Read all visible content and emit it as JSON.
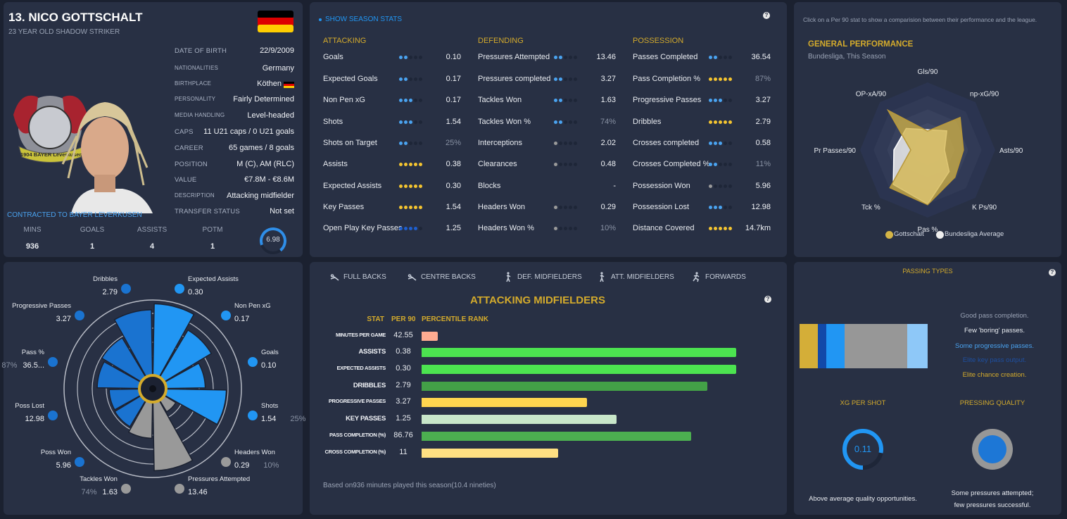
{
  "player": {
    "name": "13. NICO GOTTSCHALT",
    "subtitle": "23 YEAR OLD  SHADOW STRIKER",
    "nation_flag_colors": [
      "#000000",
      "#dd0000",
      "#ffce00"
    ],
    "crest_text": "1904 BAYER Leverkusen",
    "contracted": "CONTRACTED TO BAYER LEVERKUSEN",
    "info": [
      {
        "label": "DATE OF BIRTH",
        "value": "22/9/2009"
      },
      {
        "label": "NATIONALITIES",
        "value": "Germany"
      },
      {
        "label": "BIRTHPLACE",
        "value": "Köthen"
      },
      {
        "label": "PERSONALITY",
        "value": "Fairly Determined"
      },
      {
        "label": "MEDIA HANDLING",
        "value": "Level-headed"
      },
      {
        "label": "CAPS",
        "value": "11 U21 caps / 0 U21 goals"
      },
      {
        "label": "CAREER",
        "value": "65  games /    8  goals"
      },
      {
        "label": "POSITION",
        "value": "M (C), AM (RLC)"
      },
      {
        "label": "VALUE",
        "value": "€7.8M - €8.6M"
      },
      {
        "label": "DESCRIPTION",
        "value": "Attacking midfielder"
      },
      {
        "label": "TRANSFER STATUS",
        "value": "Not set"
      }
    ],
    "summary": [
      {
        "label": "MINS",
        "value": "936"
      },
      {
        "label": "GOALS",
        "value": "1"
      },
      {
        "label": "ASSISTS",
        "value": "4"
      },
      {
        "label": "POTM",
        "value": "1"
      }
    ],
    "rating": {
      "value": "6.98",
      "fill_fraction": 0.7
    }
  },
  "season_stats": {
    "toggle_label": "SHOW SEASON STATS",
    "dot_colors": {
      "blue": "#4aa3f0",
      "yellow": "#f4c430",
      "navy": "#1f5fcf",
      "grey": "#9a9a9a"
    },
    "groups": [
      {
        "title": "ATTACKING",
        "stats": [
          {
            "label": "Goals",
            "dots": 2,
            "color": "blue",
            "value": "0.10"
          },
          {
            "label": "Expected Goals",
            "dots": 2,
            "color": "blue",
            "value": "0.17"
          },
          {
            "label": "Non Pen xG",
            "dots": 3,
            "color": "blue",
            "value": "0.17"
          },
          {
            "label": "Shots",
            "dots": 3,
            "color": "blue",
            "value": "1.54"
          },
          {
            "label": "Shots on Target",
            "dots": 2,
            "color": "blue",
            "value": "25%",
            "dim": true
          },
          {
            "label": "Assists",
            "dots": 5,
            "color": "yellow",
            "value": "0.38"
          },
          {
            "label": "Expected Assists",
            "dots": 5,
            "color": "yellow",
            "value": "0.30"
          },
          {
            "label": "Key Passes",
            "dots": 5,
            "color": "yellow",
            "value": "1.54"
          },
          {
            "label": "Open Play Key Passes",
            "dots": 4,
            "color": "navy",
            "value": "1.25"
          }
        ]
      },
      {
        "title": "DEFENDING",
        "stats": [
          {
            "label": "Pressures Attempted",
            "dots": 2,
            "color": "blue",
            "value": "13.46"
          },
          {
            "label": "Pressures completed",
            "dots": 2,
            "color": "blue",
            "value": "3.27"
          },
          {
            "label": "Tackles Won",
            "dots": 2,
            "color": "blue",
            "value": "1.63"
          },
          {
            "label": "Tackles Won %",
            "dots": 2,
            "color": "blue",
            "value": "74%",
            "dim": true
          },
          {
            "label": "Interceptions",
            "dots": 1,
            "color": "grey",
            "value": "2.02"
          },
          {
            "label": "Clearances",
            "dots": 1,
            "color": "grey",
            "value": "0.48"
          },
          {
            "label": "Blocks",
            "dots": null,
            "color": "grey",
            "value": "-"
          },
          {
            "label": "Headers Won",
            "dots": 1,
            "color": "grey",
            "value": "0.29"
          },
          {
            "label": "Headers Won %",
            "dots": 1,
            "color": "grey",
            "value": "10%",
            "dim": true
          }
        ]
      },
      {
        "title": "POSSESSION",
        "stats": [
          {
            "label": "Passes Completed",
            "dots": 2,
            "color": "blue",
            "value": "36.54"
          },
          {
            "label": "Pass Completion %",
            "dots": 5,
            "color": "yellow",
            "value": "87%",
            "dim": true
          },
          {
            "label": "Progressive Passes",
            "dots": 3,
            "color": "blue",
            "value": "3.27"
          },
          {
            "label": "Dribbles",
            "dots": 5,
            "color": "yellow",
            "value": "2.79"
          },
          {
            "label": "Crosses completed",
            "dots": 3,
            "color": "blue",
            "value": "0.58"
          },
          {
            "label": "Crosses Completed %",
            "dots": 2,
            "color": "blue",
            "value": "11%",
            "dim": true
          },
          {
            "label": "Possession Won",
            "dots": 1,
            "color": "grey",
            "value": "5.96"
          },
          {
            "label": "Possession Lost",
            "dots": 3,
            "color": "blue",
            "value": "12.98"
          },
          {
            "label": "Distance Covered",
            "dots": 5,
            "color": "yellow",
            "value": "14.7km"
          }
        ]
      }
    ]
  },
  "general_performance": {
    "hint": "Click on a Per 90 stat to show a comparision between their performance and the league.",
    "title": "GENERAL PERFORMANCE",
    "subtitle": "Bundesliga, This Season"
  },
  "role_tabs": [
    {
      "label": "FULL BACKS",
      "icon": "slide-tackle-icon"
    },
    {
      "label": "CENTRE BACKS",
      "icon": "slide-tackle-icon"
    },
    {
      "label": "DEF. MIDFIELDERS",
      "icon": "player-walking-icon"
    },
    {
      "label": "ATT. MIDFIELDERS",
      "icon": "player-walking-icon"
    },
    {
      "label": "FORWARDS",
      "icon": "player-running-icon"
    }
  ],
  "percentiles": {
    "title": "ATTACKING MIDFIELDERS",
    "headers": {
      "stat": "STAT",
      "per90": "PER 90",
      "rank": "PERCENTILE RANK"
    },
    "footer": "Based on936 minutes played this season(10.4 nineties)"
  },
  "passing_types": {
    "title": "PASSING TYPES",
    "segments": [
      {
        "share": 14.3,
        "color": "#d4ae38"
      },
      {
        "share": 6.6,
        "color": "#1249a8"
      },
      {
        "share": 14.3,
        "color": "#2196f3"
      },
      {
        "share": 48.9,
        "color": "#979797"
      },
      {
        "share": 15.9,
        "color": "#8ec8f8"
      }
    ],
    "notes": [
      {
        "text": "Good pass completion.",
        "color": "#9aa3b5"
      },
      {
        "text": "Few 'boring' passes.",
        "color": "#e8ebf0"
      },
      {
        "text": "Some progressive passes.",
        "color": "#4aa3f0"
      },
      {
        "text": "Elite key pass output.",
        "color": "#1e4fa0"
      },
      {
        "text": "Elite chance creation.",
        "color": "#d4ab2c"
      }
    ]
  },
  "xg_per_shot": {
    "title": "XG PER SHOT",
    "value": "0.11",
    "fill_fraction": 0.78,
    "note": "Above average quality opportunities."
  },
  "pressing_quality": {
    "title": "PRESSING QUALITY",
    "note_line1": "Some pressures attempted;",
    "note_line2": "few pressures successful."
  },
  "chart_data": [
    {
      "type": "radar",
      "axes": [
        "Gls/90",
        "np-xG/90",
        "Asts/90",
        "K Ps/90",
        "Pas %",
        "Tck %",
        "Pr Passes/90",
        "OP-xA/90"
      ],
      "range": [
        0,
        1
      ],
      "series": [
        {
          "name": "Gottschalt",
          "color": "#d4b446",
          "values": [
            0.28,
            0.68,
            0.53,
            0.57,
            0.81,
            0.79,
            0.25,
            0.83
          ]
        },
        {
          "name": "Bundesliga Average",
          "color": "#eeeeee",
          "values": [
            0.3,
            0.4,
            0.25,
            0.45,
            0.8,
            0.72,
            0.5,
            0.45
          ]
        }
      ]
    },
    {
      "type": "pizza",
      "group_colors": {
        "attacking": "#2196f3",
        "possession": "#1a73d0",
        "defending": "#999999"
      },
      "slices": [
        {
          "label": "Expected Assists",
          "value": "0.30",
          "percentile": 95,
          "group": "attacking"
        },
        {
          "label": "Non Pen xG",
          "value": "0.17",
          "percentile": 73,
          "group": "attacking"
        },
        {
          "label": "Goals",
          "value": "0.10",
          "percentile": 52,
          "group": "attacking"
        },
        {
          "label": "Shots",
          "value": "1.54",
          "pct": "25%",
          "percentile": 80,
          "group": "attacking"
        },
        {
          "label": "Headers Won",
          "value": "0.29",
          "pct": "10%",
          "percentile": 18,
          "group": "defending"
        },
        {
          "label": "Pressures Attempted",
          "value": "13.46",
          "percentile": 91,
          "group": "defending"
        },
        {
          "label": "Tackles Won",
          "value": "1.63",
          "pct": "74%",
          "percentile": 48,
          "group": "defending"
        },
        {
          "label": "Poss Won",
          "value": "5.96",
          "percentile": 41,
          "group": "possession"
        },
        {
          "label": "Poss Lost",
          "value": "12.98",
          "percentile": 40,
          "group": "possession"
        },
        {
          "label": "Pass %",
          "value": "36.5...",
          "pct": "87%",
          "percentile": 56,
          "group": "possession"
        },
        {
          "label": "Progressive Passes",
          "value": "3.27",
          "percentile": 61,
          "group": "possession"
        },
        {
          "label": "Dribbles",
          "value": "2.79",
          "percentile": 87,
          "group": "possession"
        }
      ]
    },
    {
      "type": "bar",
      "orientation": "horizontal",
      "categories": [
        "MINUTES PER GAME",
        "ASSISTS",
        "EXPECTED ASSISTS",
        "DRIBBLES",
        "PROGRESSIVE PASSES",
        "KEY PASSES",
        "PASS COMPLETION (%)",
        "CROSS COMPLETION (%)"
      ],
      "per90": [
        "42.55",
        "0.38",
        "0.30",
        "2.79",
        "3.27",
        "1.25",
        "86.76",
        "11"
      ],
      "values": [
        5,
        97,
        97,
        88,
        51,
        60,
        83,
        42
      ],
      "colors": [
        "#ffab91",
        "#4ce350",
        "#4ce350",
        "#43a047",
        "#ffd54f",
        "#c8e6c9",
        "#4caf50",
        "#ffe082"
      ],
      "xlim": [
        0,
        100
      ]
    }
  ]
}
